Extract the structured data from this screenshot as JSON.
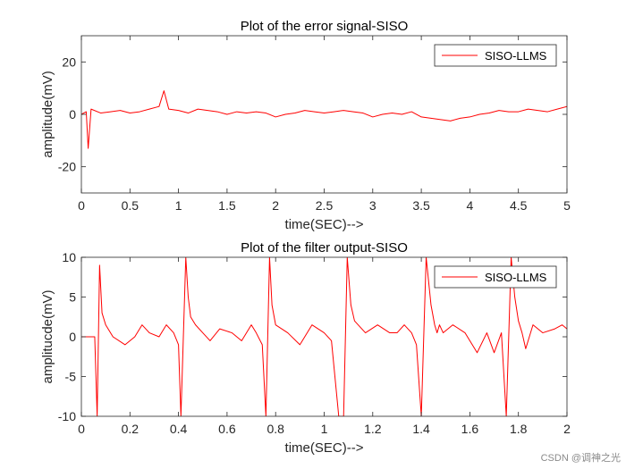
{
  "chart_data": [
    {
      "type": "line",
      "title": "Plot of the error signal-SISO",
      "xlabel": "time(SEC)-->",
      "ylabel": "amplitude(mV)",
      "xlim": [
        0,
        5
      ],
      "ylim": [
        -30,
        30
      ],
      "xticks": [
        0,
        0.5,
        1,
        1.5,
        2,
        2.5,
        3,
        3.5,
        4,
        4.5,
        5
      ],
      "xtick_labels": [
        "0",
        "0.5",
        "1",
        "1.5",
        "2",
        "2.5",
        "3",
        "3.5",
        "4",
        "4.5",
        "5"
      ],
      "yticks": [
        -20,
        0,
        20
      ],
      "ytick_labels": [
        "-20",
        "0",
        "20"
      ],
      "legend_position": "top-right",
      "series": [
        {
          "name": "SISO-LLMS",
          "color": "#ff0000",
          "x": [
            0,
            0.05,
            0.07,
            0.1,
            0.2,
            0.3,
            0.4,
            0.5,
            0.6,
            0.7,
            0.8,
            0.85,
            0.9,
            1.0,
            1.1,
            1.2,
            1.3,
            1.4,
            1.5,
            1.6,
            1.7,
            1.8,
            1.9,
            2.0,
            2.1,
            2.2,
            2.3,
            2.4,
            2.5,
            2.6,
            2.7,
            2.8,
            2.9,
            3.0,
            3.1,
            3.2,
            3.3,
            3.4,
            3.5,
            3.6,
            3.7,
            3.8,
            3.9,
            4.0,
            4.1,
            4.2,
            4.3,
            4.4,
            4.5,
            4.6,
            4.7,
            4.8,
            4.9,
            5.0
          ],
          "y": [
            0,
            1,
            -13,
            2,
            0.5,
            1,
            1.5,
            0.5,
            1,
            2,
            3,
            9,
            2,
            1.5,
            0.5,
            2,
            1.5,
            1,
            0,
            1,
            0.5,
            1,
            0.5,
            -1,
            0,
            0.5,
            1.5,
            1,
            0.5,
            1,
            1.5,
            1,
            0.5,
            -1,
            0,
            0.5,
            0,
            1,
            -1,
            -1.5,
            -2,
            -2.5,
            -1.5,
            -1,
            0,
            0.5,
            1.5,
            1,
            1,
            2,
            1.5,
            1,
            2,
            3
          ]
        }
      ]
    },
    {
      "type": "line",
      "title": "Plot of the filter output-SISO",
      "xlabel": "time(SEC)-->",
      "ylabel": "amplitucde(mV)",
      "xlim": [
        0,
        2
      ],
      "ylim": [
        -10,
        10
      ],
      "xticks": [
        0,
        0.2,
        0.4,
        0.6,
        0.8,
        1,
        1.2,
        1.4,
        1.6,
        1.8,
        2
      ],
      "xtick_labels": [
        "0",
        "0.2",
        "0.4",
        "0.6",
        "0.8",
        "1",
        "1.2",
        "1.4",
        "1.6",
        "1.8",
        "2"
      ],
      "yticks": [
        -10,
        -5,
        0,
        5,
        10
      ],
      "ytick_labels": [
        "-10",
        "-5",
        "0",
        "5",
        "10"
      ],
      "legend_position": "top-right",
      "series": [
        {
          "name": "SISO-LLMS",
          "color": "#ff0000",
          "x": [
            0,
            0.04,
            0.055,
            0.065,
            0.075,
            0.085,
            0.1,
            0.13,
            0.18,
            0.22,
            0.25,
            0.28,
            0.32,
            0.35,
            0.38,
            0.4,
            0.41,
            0.43,
            0.44,
            0.45,
            0.47,
            0.5,
            0.53,
            0.57,
            0.62,
            0.66,
            0.7,
            0.72,
            0.745,
            0.76,
            0.775,
            0.785,
            0.8,
            0.85,
            0.9,
            0.95,
            1.0,
            1.03,
            1.06,
            1.08,
            1.095,
            1.11,
            1.125,
            1.14,
            1.17,
            1.22,
            1.27,
            1.3,
            1.33,
            1.36,
            1.38,
            1.4,
            1.42,
            1.44,
            1.455,
            1.465,
            1.475,
            1.49,
            1.53,
            1.58,
            1.63,
            1.67,
            1.7,
            1.73,
            1.75,
            1.77,
            1.785,
            1.8,
            1.815,
            1.83,
            1.86,
            1.9,
            1.95,
            1.98,
            2.0
          ],
          "y": [
            0,
            0,
            0,
            -10,
            9,
            3,
            1.5,
            0,
            -1,
            0,
            1.5,
            0.5,
            0,
            1.5,
            0.5,
            -1,
            -10,
            10,
            5,
            2.5,
            1.5,
            0.5,
            -0.5,
            1,
            0.5,
            -0.5,
            1.5,
            0.5,
            -1,
            -10,
            10,
            4,
            1.5,
            0.5,
            -1,
            1.5,
            0.5,
            -0.5,
            -10,
            -10,
            10,
            4,
            2,
            1.5,
            0.5,
            1.5,
            0.5,
            0.5,
            1.5,
            0.5,
            -1,
            -10,
            10,
            4,
            1.5,
            0.5,
            1.5,
            0.5,
            1.5,
            0.5,
            -2,
            0.5,
            -2,
            0.5,
            -10,
            10,
            5,
            2,
            0.5,
            -1.5,
            1.5,
            0.5,
            1,
            1.5,
            1
          ]
        }
      ]
    }
  ],
  "watermark": "CSDN @调神之光"
}
